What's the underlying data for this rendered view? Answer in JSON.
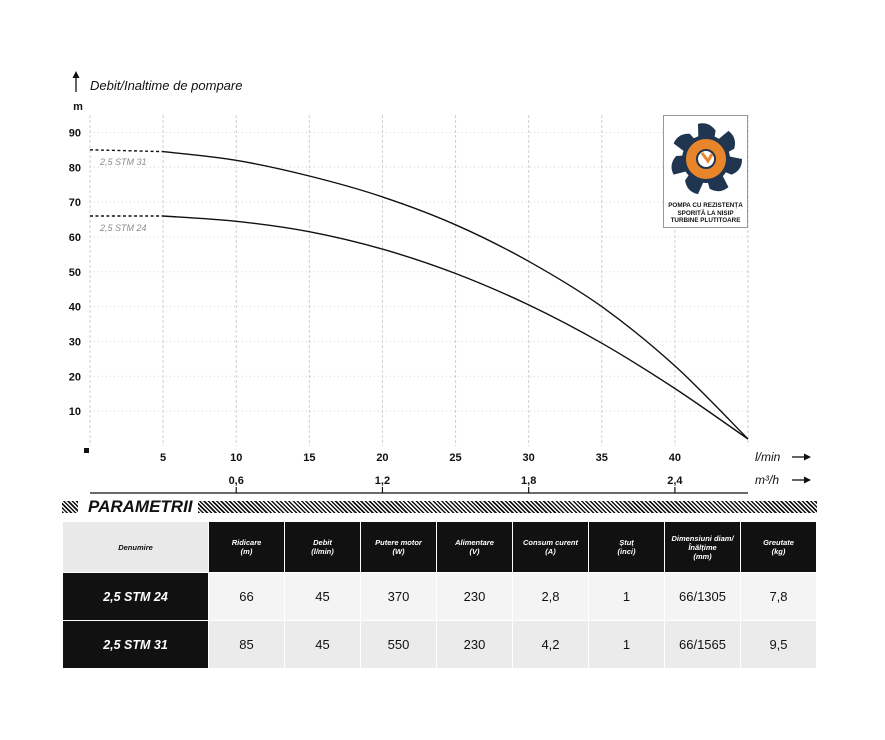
{
  "chart_data": {
    "type": "line",
    "title": "Debit/Inaltime de pompare",
    "ylabel": "m",
    "xlabel": "l/min",
    "xlabel_secondary": "m³/h",
    "xlim": [
      0,
      45
    ],
    "ylim": [
      0,
      95
    ],
    "yticks": [
      10,
      20,
      30,
      40,
      50,
      60,
      70,
      80,
      90
    ],
    "xticks": [
      5,
      10,
      15,
      20,
      25,
      30,
      35,
      40
    ],
    "xticks_secondary": [
      {
        "lmin": 10,
        "label": "0,6"
      },
      {
        "lmin": 20,
        "label": "1,2"
      },
      {
        "lmin": 30,
        "label": "1,8"
      },
      {
        "lmin": 40,
        "label": "2,4"
      }
    ],
    "series": [
      {
        "name": "2,5 STM 31",
        "x": [
          0,
          5,
          10,
          15,
          20,
          25,
          30,
          35,
          40,
          45
        ],
        "y": [
          85,
          84.5,
          82,
          77.5,
          71.5,
          63.5,
          53,
          40,
          23,
          2
        ]
      },
      {
        "name": "2,5 STM 24",
        "x": [
          0,
          5,
          10,
          15,
          20,
          25,
          30,
          35,
          40,
          45
        ],
        "y": [
          66,
          66,
          64.5,
          61.5,
          56.5,
          49.5,
          40.5,
          29.5,
          16.5,
          2
        ]
      }
    ],
    "dashed_until_x": 5,
    "grid": true
  },
  "badge": {
    "line1": "POMPA CU REZISTENȚA",
    "line2": "SPORITĂ LA NISIP",
    "line3": "TURBINE PLUTITOARE",
    "colors": {
      "impeller": "#1f3550",
      "ring": "#e8852b",
      "hub": "#ffffff"
    }
  },
  "params": {
    "title": "PARAMETRII",
    "headers": [
      {
        "l1": "Denumire",
        "l2": ""
      },
      {
        "l1": "Ridicare",
        "l2": "(m)"
      },
      {
        "l1": "Debit",
        "l2": "(l/min)"
      },
      {
        "l1": "Putere motor",
        "l2": "(W)"
      },
      {
        "l1": "Alimentare",
        "l2": "(V)"
      },
      {
        "l1": "Consum curent",
        "l2": "(A)"
      },
      {
        "l1": "Ștuț",
        "l2": "(inci)"
      },
      {
        "l1": "Dimensiuni diam/Înălțime",
        "l2": "(mm)"
      },
      {
        "l1": "Greutate",
        "l2": "(kg)"
      }
    ],
    "rows": [
      [
        "2,5 STM 24",
        "66",
        "45",
        "370",
        "230",
        "2,8",
        "1",
        "66/1305",
        "7,8"
      ],
      [
        "2,5 STM 31",
        "85",
        "45",
        "550",
        "230",
        "4,2",
        "1",
        "66/1565",
        "9,5"
      ]
    ]
  }
}
